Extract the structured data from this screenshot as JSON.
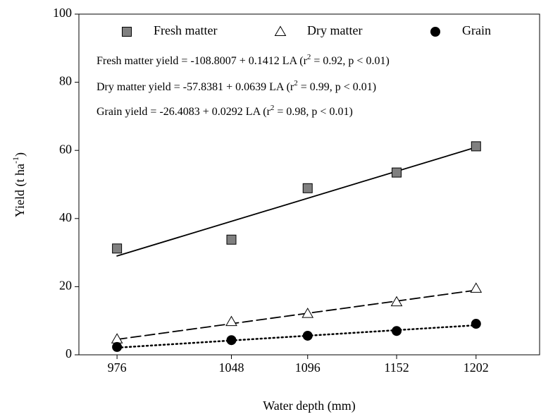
{
  "chart_data": {
    "type": "scatter",
    "x": [
      976,
      1048,
      1096,
      1152,
      1202
    ],
    "xlabel": "Water depth  (mm)",
    "ylabel": {
      "parts": [
        "Yield (t ha",
        "-1",
        ")"
      ]
    },
    "xlim": [
      952,
      1242
    ],
    "ylim": [
      0,
      100
    ],
    "xticks": [
      976,
      1048,
      1096,
      1152,
      1202
    ],
    "yticks": [
      0,
      20,
      40,
      60,
      80,
      100
    ],
    "legend": "top",
    "series": [
      {
        "name": "Fresh matter",
        "color": "#808080",
        "marker": "square",
        "line": "solid",
        "values": [
          31.2,
          33.8,
          48.9,
          53.5,
          61.2
        ],
        "fit": {
          "intercept": -108.8007,
          "slope": 0.1412
        }
      },
      {
        "name": "Dry matter",
        "color": "#ffffff",
        "marker": "triangle",
        "line": "dashed",
        "values": [
          4.6,
          9.7,
          12.1,
          15.5,
          19.5
        ],
        "fit": {
          "intercept": -57.8381,
          "slope": 0.0639
        }
      },
      {
        "name": "Grain",
        "color": "#000000",
        "marker": "circle",
        "line": "dotted",
        "values": [
          2.3,
          4.3,
          5.6,
          7.0,
          9.1
        ],
        "fit": {
          "intercept": -26.4083,
          "slope": 0.0292
        }
      }
    ],
    "annotations": [
      [
        "Fresh matter yield  = -108.8007 + 0.1412 LA (r",
        "2",
        " = 0.92, p < 0.01)"
      ],
      [
        "Dry matter yield = -57.8381 + 0.0639 LA (r",
        "2",
        " = 0.99, p < 0.01)"
      ],
      [
        "Grain yield   = -26.4083 + 0.0292 LA (r",
        "2",
        " = 0.98, p < 0.01)"
      ]
    ]
  }
}
